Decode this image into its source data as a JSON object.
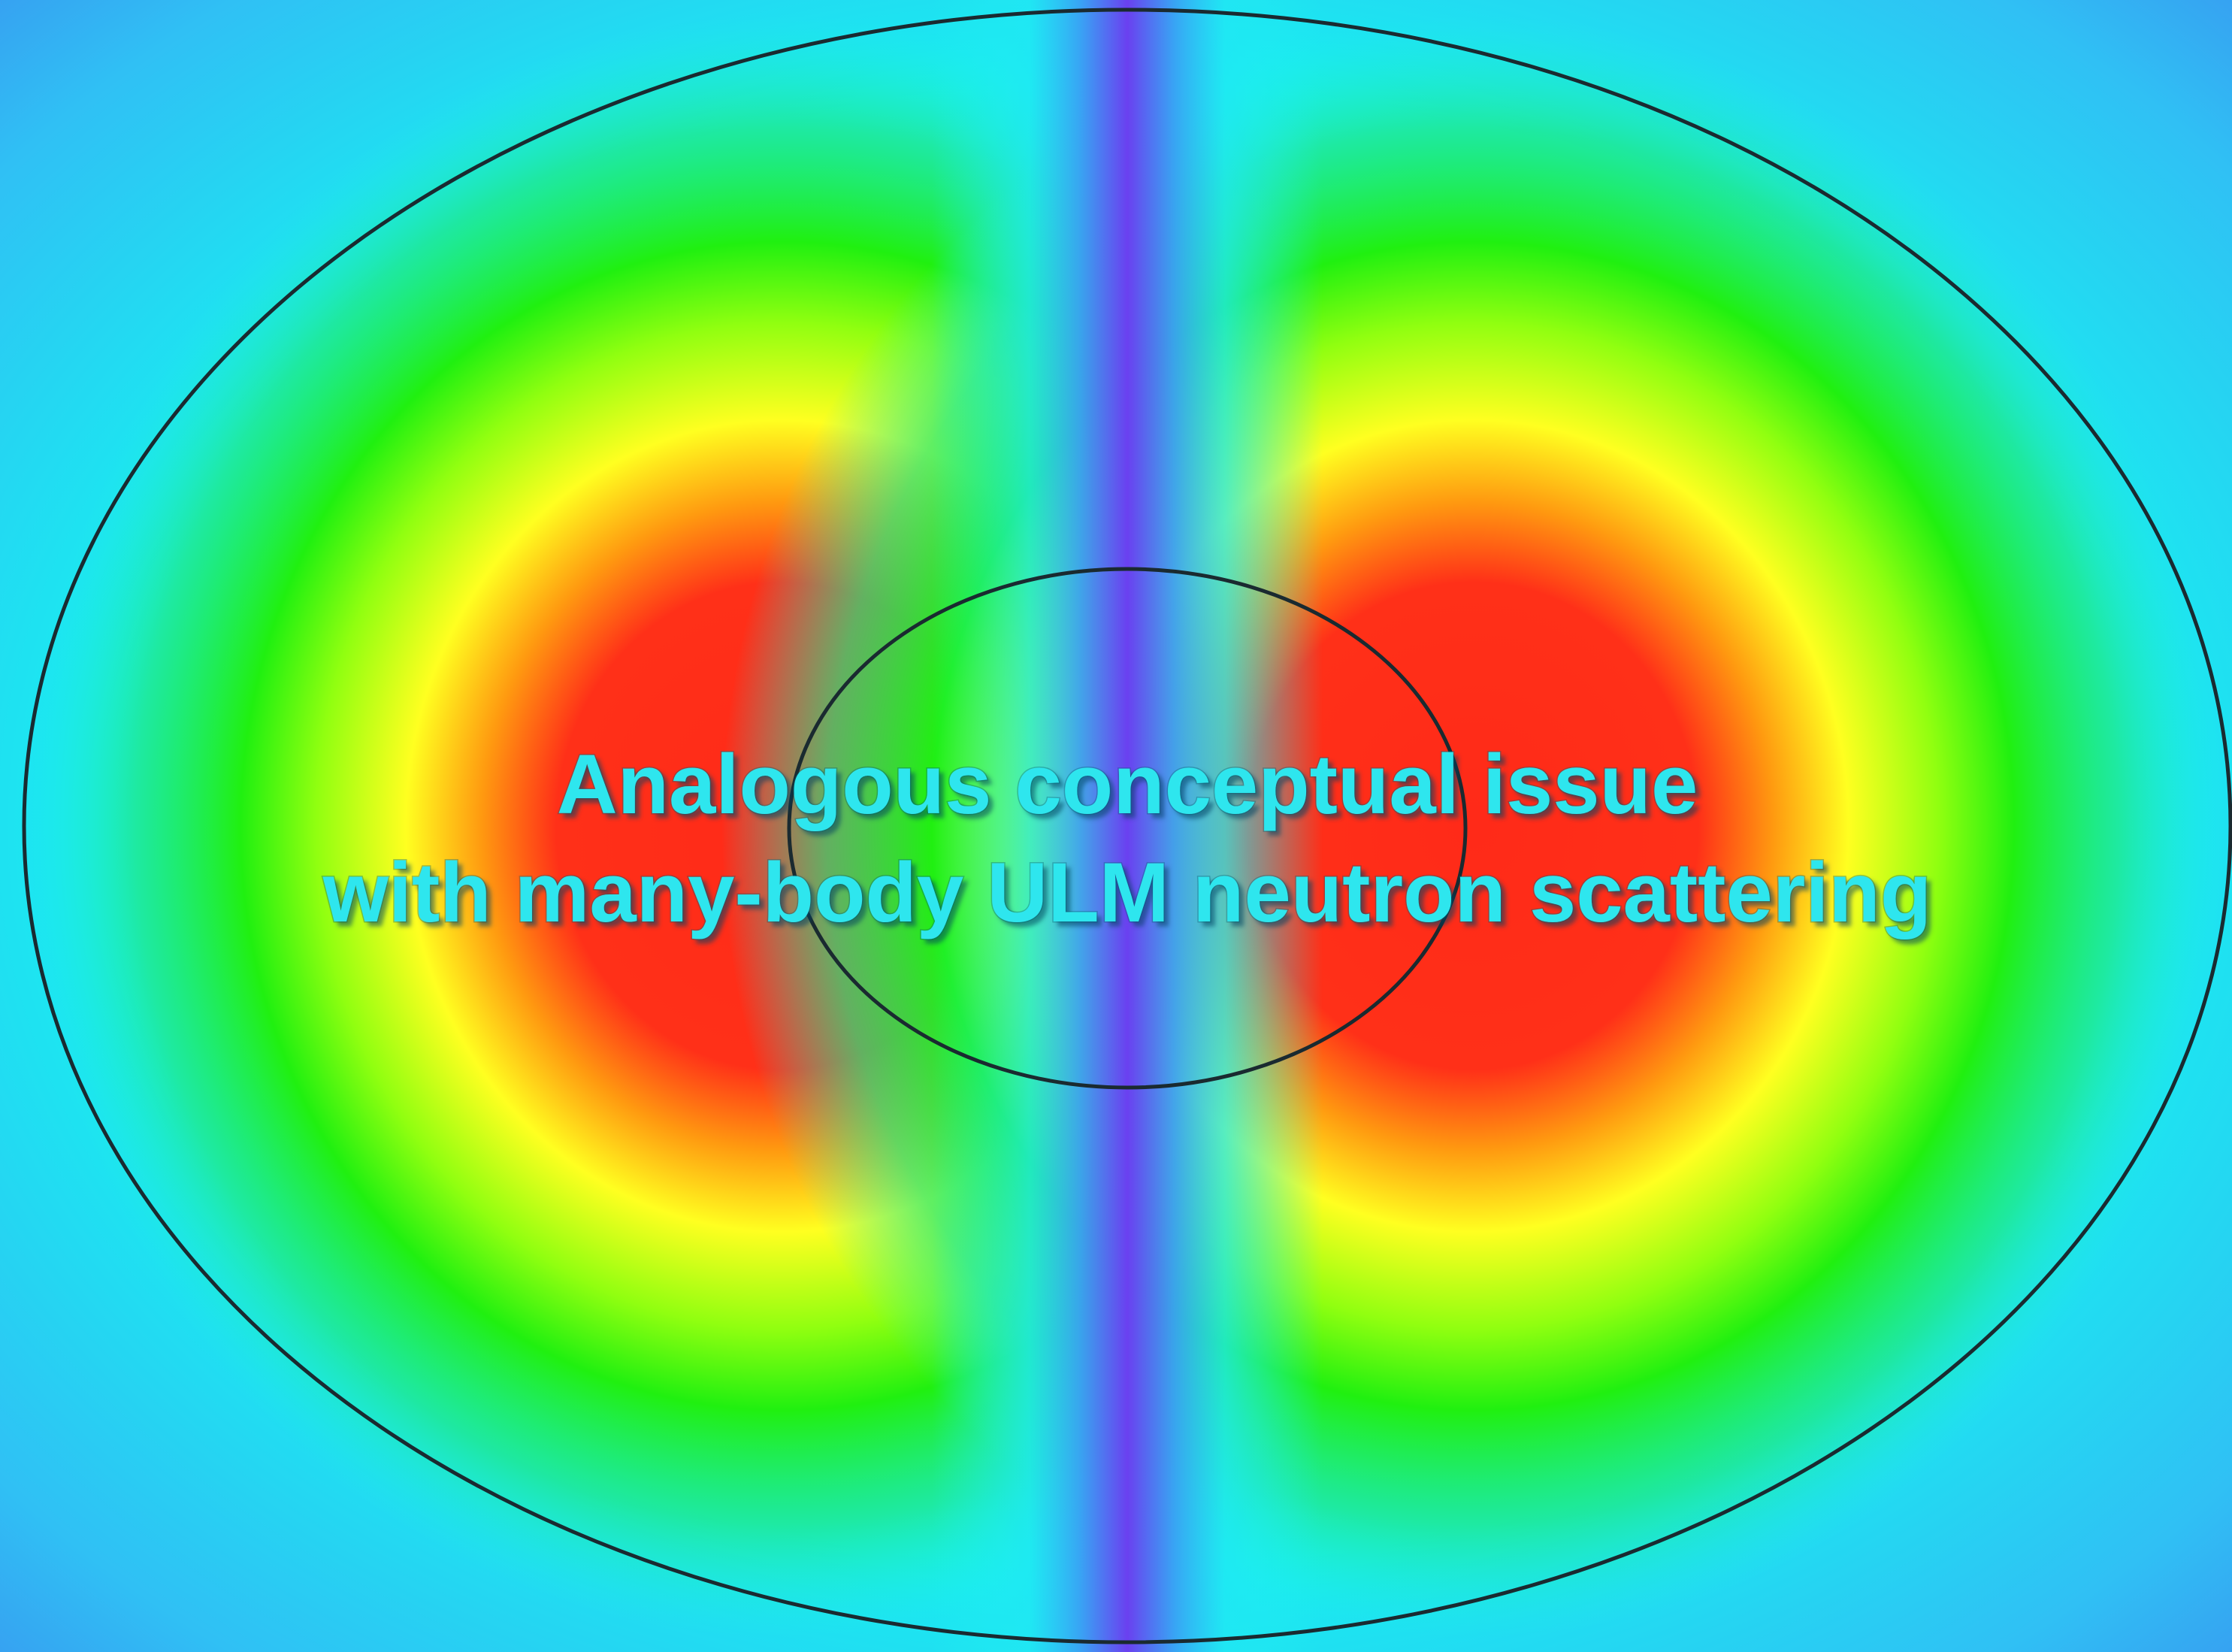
{
  "text": {
    "lines": [
      "Analogous conceptual issue",
      "with many-body ULM neutron scattering"
    ]
  }
}
